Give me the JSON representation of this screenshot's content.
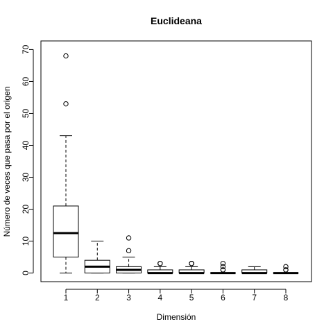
{
  "chart_data": {
    "type": "boxplot",
    "title": "Euclideana",
    "xlabel": "Dimensión",
    "ylabel": "Número de veces que pasa por el origen",
    "categories": [
      "1",
      "2",
      "3",
      "4",
      "5",
      "6",
      "7",
      "8"
    ],
    "ylim": [
      -2.7,
      72.7
    ],
    "yticks": [
      0,
      10,
      20,
      30,
      40,
      50,
      60,
      70
    ],
    "grid": false,
    "boxes": [
      {
        "category": "1",
        "whisker_low": 0,
        "q1": 5,
        "median": 12.5,
        "q3": 21,
        "whisker_high": 43,
        "outliers": [
          53,
          68
        ]
      },
      {
        "category": "2",
        "whisker_low": 0,
        "q1": 0,
        "median": 2,
        "q3": 4,
        "whisker_high": 10,
        "outliers": []
      },
      {
        "category": "3",
        "whisker_low": 0,
        "q1": 0,
        "median": 1,
        "q3": 2,
        "whisker_high": 5,
        "outliers": [
          7,
          11
        ]
      },
      {
        "category": "4",
        "whisker_low": 0,
        "q1": 0,
        "median": 0,
        "q3": 1,
        "whisker_high": 2,
        "outliers": [
          3,
          3
        ]
      },
      {
        "category": "5",
        "whisker_low": 0,
        "q1": 0,
        "median": 0,
        "q3": 1,
        "whisker_high": 2,
        "outliers": [
          3,
          3,
          3
        ]
      },
      {
        "category": "6",
        "whisker_low": 0,
        "q1": 0,
        "median": 0,
        "q3": 0,
        "whisker_high": 0,
        "outliers": [
          1,
          1,
          2,
          3
        ]
      },
      {
        "category": "7",
        "whisker_low": 0,
        "q1": 0,
        "median": 0,
        "q3": 1,
        "whisker_high": 2,
        "outliers": []
      },
      {
        "category": "8",
        "whisker_low": 0,
        "q1": 0,
        "median": 0,
        "q3": 0,
        "whisker_high": 0,
        "outliers": [
          1,
          1,
          2
        ]
      }
    ]
  }
}
